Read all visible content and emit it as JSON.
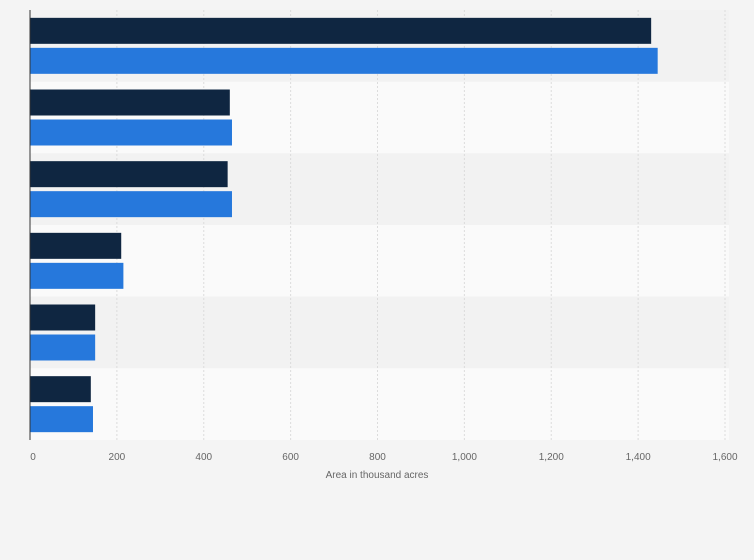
{
  "chart_data": {
    "type": "bar",
    "orientation": "horizontal",
    "title": "",
    "xlabel": "Area in thousand acres",
    "ylabel": "",
    "xlim": [
      0,
      1600
    ],
    "xticks": [
      0,
      200,
      400,
      600,
      800,
      1000,
      1200,
      1400,
      1600
    ],
    "xtick_labels": [
      "0",
      "200",
      "400",
      "600",
      "800",
      "1,000",
      "1,200",
      "1,400",
      "1,600"
    ],
    "categories": [
      "",
      "",
      "",
      "",
      "",
      ""
    ],
    "series": [
      {
        "color": "#0f2641",
        "values": [
          1430,
          460,
          455,
          210,
          150,
          140
        ]
      },
      {
        "color": "#2678dc",
        "values": [
          1445,
          465,
          465,
          215,
          150,
          145
        ]
      }
    ],
    "grid": true,
    "legend": "none"
  }
}
